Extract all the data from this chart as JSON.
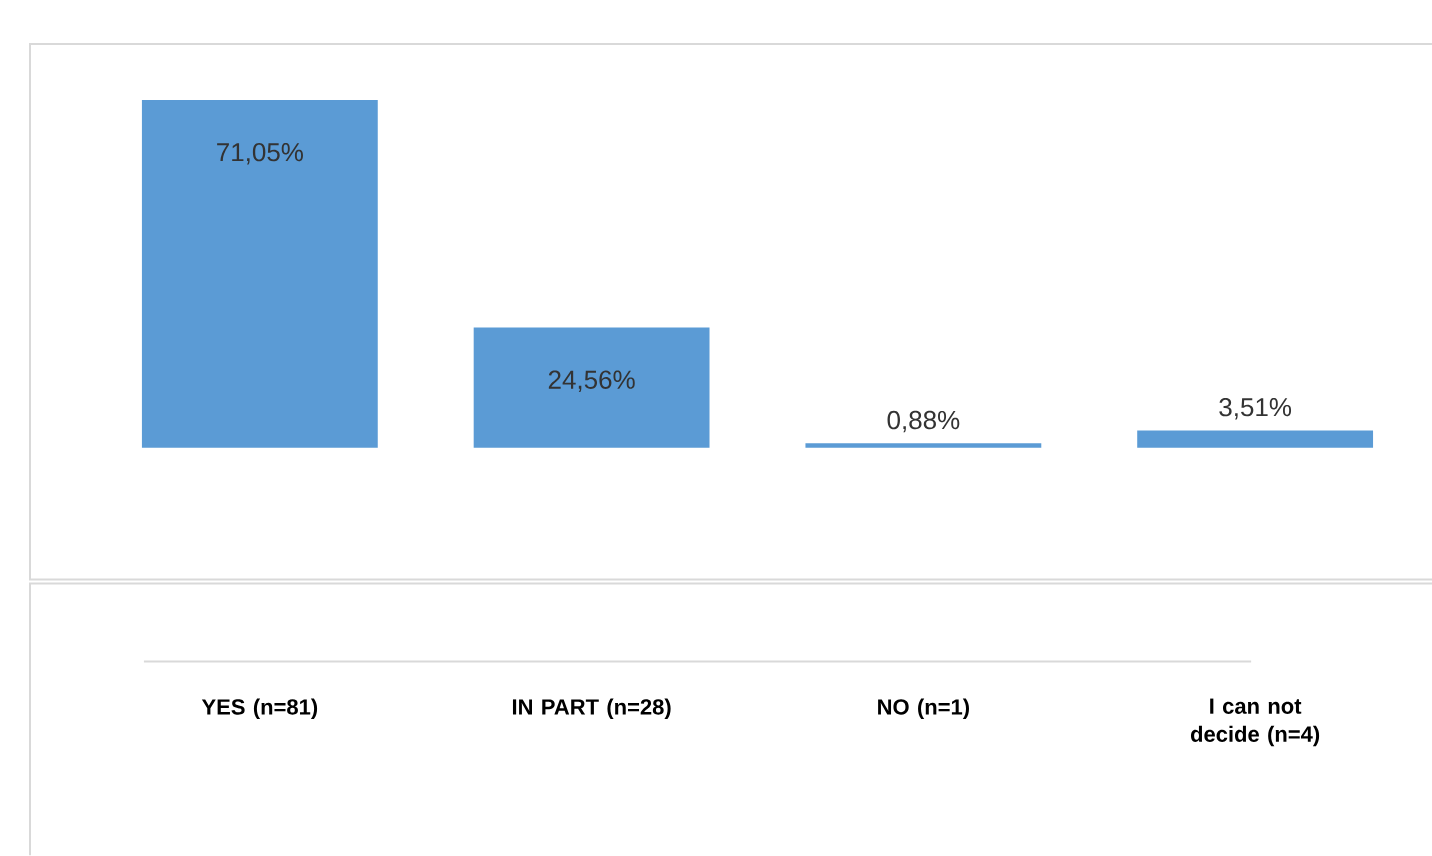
{
  "chart_data": {
    "type": "bar",
    "categories": [
      "YES (n=81)",
      "IN PART (n=28)",
      "NO (n=1)",
      "I can not decide (n=4)"
    ],
    "values": [
      71.05,
      24.56,
      0.88,
      3.51
    ],
    "value_labels": [
      "71,05%",
      "24,56%",
      "0,88%",
      "3,51%"
    ],
    "color": "#5b9bd5"
  }
}
